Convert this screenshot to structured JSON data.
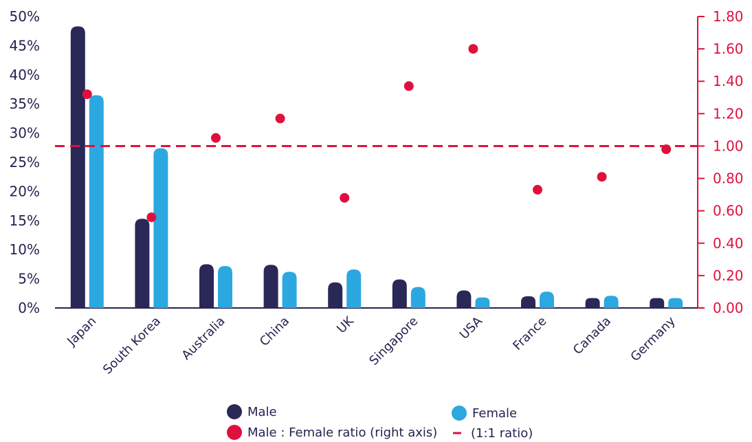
{
  "chart_data": {
    "type": "bar",
    "categories": [
      "Japan",
      "South Korea",
      "Australia",
      "China",
      "UK",
      "Singapore",
      "USA",
      "France",
      "Canada",
      "Germany"
    ],
    "series": [
      {
        "name": "Male",
        "values": [
          48.3,
          15.3,
          7.5,
          7.4,
          4.4,
          4.9,
          3.0,
          2.0,
          1.7,
          1.7
        ],
        "axis": "left",
        "color": "#2a2856"
      },
      {
        "name": "Female",
        "values": [
          36.5,
          27.4,
          7.2,
          6.2,
          6.6,
          3.6,
          1.8,
          2.8,
          2.1,
          1.7
        ],
        "axis": "left",
        "color": "#2ca8e0"
      },
      {
        "name": "Male : Female ratio (right axis)",
        "values": [
          1.32,
          0.56,
          1.05,
          1.17,
          0.68,
          1.37,
          1.6,
          0.73,
          0.81,
          0.98
        ],
        "axis": "right",
        "type": "scatter",
        "color": "#e0103d"
      }
    ],
    "reference_line": {
      "value": 1.0,
      "axis": "right",
      "label": "(1:1 ratio)",
      "style": "dashed",
      "color": "#e0103d"
    },
    "y_left": {
      "lim": [
        0,
        50
      ],
      "ticks": [
        "0%",
        "5%",
        "10%",
        "15%",
        "20%",
        "25%",
        "30%",
        "35%",
        "40%",
        "45%",
        "50%"
      ]
    },
    "y_right": {
      "lim": [
        0,
        1.8
      ],
      "ticks": [
        "0.00",
        "0.20",
        "0.40",
        "0.60",
        "0.80",
        "1.00",
        "1.20",
        "1.40",
        "1.60",
        "1.80"
      ]
    },
    "grid": false,
    "legend": {
      "position": "bottom",
      "items": [
        {
          "label": "Male",
          "marker": "circle",
          "color": "#2a2856"
        },
        {
          "label": "Female",
          "marker": "circle",
          "color": "#2ca8e0"
        },
        {
          "label": "Male : Female ratio (right axis)",
          "marker": "circle",
          "color": "#e0103d"
        },
        {
          "label": "(1:1 ratio)",
          "marker": "dash",
          "color": "#e0103d"
        }
      ]
    }
  }
}
